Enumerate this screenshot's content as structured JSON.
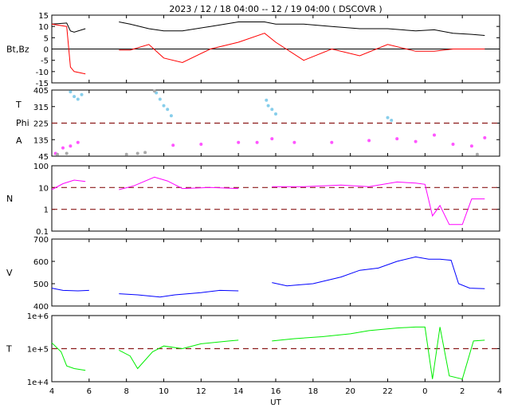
{
  "title": "2023 / 12 / 18   04:00 -- 12 / 19   04:00 ( DSCOVR )",
  "xlabel": "UT",
  "x_ticks": [
    "4",
    "6",
    "8",
    "10",
    "12",
    "14",
    "16",
    "18",
    "20",
    "22",
    "0",
    "2",
    "4"
  ],
  "colors": {
    "bt": "#000000",
    "bz": "#ff0000",
    "theta": "#87ceeb",
    "phi": "#ff55ff",
    "angle_gray": "#a9a9a9",
    "density": "#ff00ff",
    "speed": "#0000ff",
    "temperature": "#00ee00",
    "reference_line": "#8b1a1a"
  },
  "chart_data": [
    {
      "type": "line",
      "ylabel": "Bt,Bz",
      "ylim": [
        -15,
        15
      ],
      "y_ticks": [
        "15",
        "10",
        "5",
        "0",
        "-5",
        "-10",
        "-15"
      ],
      "x_hours": [
        4,
        4.8,
        5.0,
        5.2,
        5.8,
        7.6,
        8.2,
        9.2,
        10.0,
        11.0,
        12.5,
        14.0,
        15.4,
        16.0,
        17.5,
        19.0,
        20.5,
        22.0,
        23.5,
        24.5,
        25.5,
        26.5,
        27.2
      ],
      "series": [
        {
          "name": "Bt",
          "values": [
            11,
            11.5,
            8,
            7.5,
            9,
            12,
            11,
            9,
            8,
            8,
            10,
            12,
            12,
            11,
            11,
            10,
            9,
            9,
            8,
            8.5,
            7,
            6.5,
            6
          ]
        },
        {
          "name": "Bz",
          "values": [
            11,
            10,
            -8,
            -10,
            -11,
            -0.5,
            -0.5,
            2,
            -4,
            -6,
            0,
            3,
            7,
            3,
            -5,
            0,
            -3,
            2,
            -1,
            -1,
            0,
            0,
            0
          ]
        }
      ],
      "gap_hours": [
        [
          6.0,
          7.6
        ]
      ]
    },
    {
      "type": "scatter",
      "ylabel_lines": [
        "T",
        "Phi",
        "A"
      ],
      "ylim": [
        45,
        405
      ],
      "y_ticks": [
        "405",
        "315",
        "225",
        "135",
        "45"
      ],
      "reference_lines": [
        225
      ],
      "series": [
        {
          "name": "Theta",
          "points": [
            [
              5.0,
              395
            ],
            [
              5.2,
              370
            ],
            [
              5.4,
              355
            ],
            [
              5.6,
              380
            ],
            [
              9.6,
              390
            ],
            [
              9.8,
              355
            ],
            [
              10.0,
              320
            ],
            [
              10.2,
              300
            ],
            [
              10.4,
              265
            ],
            [
              15.5,
              350
            ],
            [
              15.6,
              320
            ],
            [
              15.8,
              300
            ],
            [
              16.0,
              275
            ],
            [
              22.0,
              255
            ],
            [
              22.2,
              240
            ]
          ]
        },
        {
          "name": "Phi",
          "points": [
            [
              4.2,
              60
            ],
            [
              4.6,
              90
            ],
            [
              5.0,
              100
            ],
            [
              5.4,
              120
            ],
            [
              10.5,
              105
            ],
            [
              12.0,
              110
            ],
            [
              14.0,
              120
            ],
            [
              15.0,
              120
            ],
            [
              15.8,
              140
            ],
            [
              17.0,
              120
            ],
            [
              19.0,
              120
            ],
            [
              21.0,
              130
            ],
            [
              22.5,
              140
            ],
            [
              23.5,
              125
            ],
            [
              24.5,
              160
            ],
            [
              25.5,
              110
            ],
            [
              26.5,
              100
            ],
            [
              27.2,
              145
            ]
          ]
        },
        {
          "name": "Angle gray",
          "points": [
            [
              4.3,
              55
            ],
            [
              4.8,
              60
            ],
            [
              8.0,
              55
            ],
            [
              8.6,
              60
            ],
            [
              9.0,
              65
            ],
            [
              9.5,
              400
            ],
            [
              26.8,
              55
            ]
          ]
        }
      ]
    },
    {
      "type": "line",
      "ylabel": "N",
      "yscale": "log",
      "ylim": [
        0.1,
        100
      ],
      "y_ticks": [
        "100",
        "10",
        "1",
        "0.1"
      ],
      "reference_lines": [
        10,
        1
      ],
      "x_hours": [
        4,
        4.6,
        5.2,
        5.8,
        7.6,
        8.4,
        9.5,
        10.2,
        11.0,
        12.5,
        14.0,
        15.8,
        17.5,
        19.5,
        21.0,
        22.5,
        23.5,
        24.0,
        24.4,
        24.8,
        25.3,
        26.0,
        26.5,
        27.2
      ],
      "values": [
        8,
        15,
        22,
        19,
        8,
        12,
        30,
        20,
        9,
        10,
        9,
        11,
        11,
        13,
        11,
        18,
        16,
        14,
        0.5,
        1.5,
        0.2,
        0.2,
        3,
        3
      ],
      "gap_hours": [
        [
          6.0,
          7.6
        ],
        [
          14.0,
          15.8
        ]
      ]
    },
    {
      "type": "line",
      "ylabel": "V",
      "ylim": [
        400,
        700
      ],
      "y_ticks": [
        "700",
        "600",
        "500",
        "400"
      ],
      "x_hours": [
        4,
        4.6,
        5.4,
        6.0,
        7.6,
        8.6,
        9.8,
        10.6,
        12.0,
        13.0,
        14.0,
        15.8,
        16.6,
        18.0,
        19.5,
        20.5,
        21.5,
        22.5,
        23.5,
        24.2,
        24.8,
        25.4,
        25.8,
        26.4,
        27.2
      ],
      "values": [
        480,
        470,
        468,
        470,
        455,
        450,
        440,
        450,
        460,
        470,
        468,
        505,
        490,
        500,
        530,
        560,
        570,
        600,
        620,
        610,
        610,
        605,
        500,
        480,
        478
      ],
      "gap_hours": [
        [
          6.0,
          7.6
        ],
        [
          14.0,
          15.8
        ]
      ]
    },
    {
      "type": "line",
      "ylabel": "T",
      "yscale": "log",
      "ylim": [
        10000,
        1000000
      ],
      "y_ticks": [
        "1e+6",
        "1e+5",
        "1e+4"
      ],
      "reference_lines": [
        100000
      ],
      "x_hours": [
        4,
        4.5,
        4.8,
        5.2,
        5.8,
        7.6,
        8.2,
        8.6,
        9.4,
        10.0,
        11.0,
        12.0,
        13.5,
        14.0,
        15.8,
        17.0,
        18.5,
        20.0,
        21.0,
        22.5,
        23.5,
        24.0,
        24.4,
        24.8,
        25.3,
        26.0,
        26.6,
        27.2
      ],
      "values": [
        150000,
        80000,
        30000,
        25000,
        22000,
        90000,
        60000,
        25000,
        80000,
        120000,
        100000,
        140000,
        170000,
        180000,
        170000,
        200000,
        230000,
        280000,
        350000,
        420000,
        450000,
        450000,
        12000,
        450000,
        15000,
        12000,
        170000,
        180000
      ],
      "gap_hours": [
        [
          6.0,
          7.6
        ],
        [
          14.0,
          15.8
        ]
      ]
    }
  ]
}
